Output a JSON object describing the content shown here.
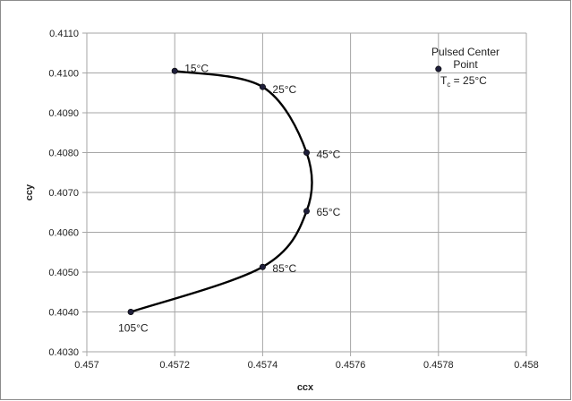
{
  "chart_data": {
    "type": "scatter",
    "xlabel": "ccx",
    "ylabel": "ccy",
    "xlim": [
      0.457,
      0.458
    ],
    "ylim": [
      0.403,
      0.411
    ],
    "x_ticks": [
      "0.457",
      "0.4572",
      "0.4574",
      "0.4576",
      "0.4578",
      "0.458"
    ],
    "y_ticks": [
      "0.4030",
      "0.4040",
      "0.4050",
      "0.4060",
      "0.4070",
      "0.4080",
      "0.4090",
      "0.4100",
      "0.4110"
    ],
    "grid": true,
    "series": [
      {
        "smooth_line": true,
        "points": [
          {
            "x": 0.4572,
            "y": 0.41005,
            "label": "15°C"
          },
          {
            "x": 0.4574,
            "y": 0.40965,
            "label": "25°C"
          },
          {
            "x": 0.4575,
            "y": 0.408,
            "label": "45°C"
          },
          {
            "x": 0.4575,
            "y": 0.40653,
            "label": "65°C"
          },
          {
            "x": 0.4574,
            "y": 0.40513,
            "label": "85°C"
          },
          {
            "x": 0.4571,
            "y": 0.404,
            "label": "105°C"
          }
        ]
      },
      {
        "points": [
          {
            "x": 0.4578,
            "y": 0.4101
          }
        ]
      }
    ],
    "annotation": {
      "line1": "Pulsed Center",
      "line2": "Point",
      "t_symbol": "T",
      "t_subscript": "c",
      "t_value": " = 25°C"
    },
    "colors": {
      "line": "#000000",
      "marker": "#1f1f3a",
      "grid": "#a6a6a6"
    }
  }
}
